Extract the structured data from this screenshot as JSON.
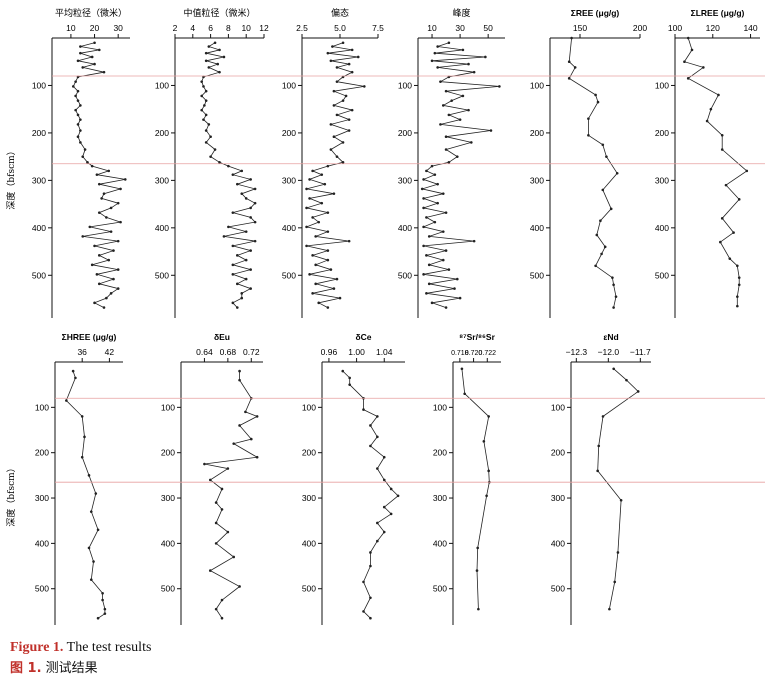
{
  "figure": {
    "caption_en_label": "Figure 1.",
    "caption_en_text": " The test results",
    "caption_cn_label": "图 1.",
    "caption_cn_text": " 测试结果",
    "y_axis_label": "深度（bfscm）",
    "boundary_depths": [
      80,
      265
    ],
    "boundary_color": "#e8a0a0"
  },
  "chart_data": [
    {
      "id": "mean",
      "type": "line",
      "title": "平均粒径（微米）",
      "xlim": [
        2,
        35
      ],
      "xticks": [
        10,
        20,
        30
      ],
      "ylim": [
        0,
        590
      ],
      "yticks": [
        100,
        200,
        300,
        400,
        500
      ],
      "x": [
        20,
        14,
        22,
        14,
        19,
        13,
        20,
        15,
        24,
        13,
        12,
        11,
        13,
        12,
        13,
        14,
        12,
        13,
        14,
        13,
        14,
        13,
        14,
        16,
        15,
        17,
        19,
        26,
        21,
        33,
        22,
        31,
        24,
        23,
        30,
        27,
        22,
        25,
        31,
        18,
        27,
        15,
        30,
        20,
        28,
        22,
        26,
        19,
        30,
        21,
        28,
        22,
        30,
        27,
        25,
        20,
        24
      ],
      "y": [
        10,
        18,
        25,
        32,
        40,
        48,
        55,
        62,
        72,
        82,
        92,
        102,
        112,
        122,
        132,
        142,
        152,
        162,
        172,
        182,
        195,
        208,
        220,
        235,
        250,
        262,
        270,
        280,
        288,
        298,
        308,
        318,
        328,
        338,
        348,
        358,
        368,
        378,
        388,
        398,
        408,
        418,
        428,
        438,
        448,
        458,
        468,
        478,
        488,
        498,
        508,
        518,
        528,
        538,
        548,
        558,
        568
      ]
    },
    {
      "id": "median",
      "type": "line",
      "title": "中值粒径（微米）",
      "xlim": [
        2,
        12
      ],
      "xticks": [
        2,
        4,
        6,
        8,
        10,
        12
      ],
      "ylim": [
        0,
        590
      ],
      "yticks": [
        100,
        200,
        300,
        400,
        500
      ],
      "x": [
        6.5,
        5.8,
        7,
        5.5,
        7.5,
        5.5,
        6.8,
        5.8,
        7,
        5.2,
        5,
        5.2,
        5.5,
        5,
        5.5,
        5.3,
        5,
        5.5,
        5.2,
        5.8,
        5.5,
        6,
        5.5,
        6.5,
        6,
        7,
        8,
        9.5,
        8.5,
        10.5,
        9,
        11,
        9.5,
        10,
        11,
        10.5,
        8.5,
        10.5,
        11,
        8,
        10,
        7.5,
        11,
        8.5,
        10.5,
        9,
        10,
        8.5,
        10.5,
        8.5,
        10,
        9,
        10.5,
        9.5,
        9.5,
        8.5,
        9
      ],
      "y": [
        10,
        18,
        25,
        32,
        40,
        48,
        55,
        62,
        72,
        82,
        92,
        102,
        112,
        122,
        132,
        142,
        152,
        162,
        172,
        182,
        195,
        208,
        220,
        235,
        250,
        262,
        270,
        280,
        288,
        298,
        308,
        318,
        328,
        338,
        348,
        358,
        368,
        378,
        388,
        398,
        408,
        418,
        428,
        438,
        448,
        458,
        468,
        478,
        488,
        498,
        508,
        518,
        528,
        538,
        548,
        558,
        568
      ]
    },
    {
      "id": "skew",
      "type": "line",
      "title": "偏态",
      "xlim": [
        2.5,
        7.5
      ],
      "xticks": [
        2.5,
        5.0,
        7.5
      ],
      "ylim": [
        0,
        590
      ],
      "yticks": [
        100,
        200,
        300,
        400,
        500
      ],
      "x": [
        5.2,
        4.5,
        5.8,
        4.2,
        6.2,
        4.4,
        5.6,
        4.8,
        5.8,
        5.2,
        4.8,
        6.6,
        4.6,
        5.4,
        5.2,
        4.6,
        5.8,
        4.8,
        5.6,
        4.4,
        5.6,
        4.6,
        5.2,
        4.4,
        4.8,
        5.2,
        4.2,
        3.2,
        3.8,
        3,
        4,
        2.8,
        4.6,
        3,
        3.8,
        2.8,
        4.2,
        3.2,
        3.6,
        2.8,
        4.2,
        3.4,
        5.6,
        2.8,
        4.2,
        3.2,
        4.2,
        3.4,
        4.4,
        3,
        4.8,
        3.4,
        4.6,
        3.2,
        5,
        3.6,
        4.2
      ],
      "y": [
        10,
        18,
        25,
        32,
        40,
        48,
        55,
        62,
        72,
        82,
        92,
        102,
        112,
        122,
        132,
        142,
        152,
        162,
        172,
        182,
        195,
        208,
        220,
        235,
        250,
        262,
        270,
        280,
        288,
        298,
        308,
        318,
        328,
        338,
        348,
        358,
        368,
        378,
        388,
        398,
        408,
        418,
        428,
        438,
        448,
        458,
        468,
        478,
        488,
        498,
        508,
        518,
        528,
        538,
        548,
        558,
        568
      ]
    },
    {
      "id": "kurt",
      "type": "line",
      "title": "峰度",
      "xlim": [
        0,
        62
      ],
      "xticks": [
        10,
        30,
        50
      ],
      "ylim": [
        0,
        590
      ],
      "yticks": [
        100,
        200,
        300,
        400,
        500
      ],
      "x": [
        22,
        14,
        32,
        12,
        48,
        10,
        36,
        14,
        40,
        22,
        16,
        58,
        20,
        32,
        24,
        18,
        36,
        22,
        30,
        16,
        52,
        20,
        38,
        20,
        28,
        22,
        10,
        6,
        12,
        4,
        14,
        3,
        18,
        4,
        14,
        4,
        20,
        6,
        12,
        4,
        18,
        8,
        40,
        4,
        20,
        6,
        18,
        8,
        22,
        4,
        28,
        8,
        26,
        6,
        30,
        10,
        20
      ],
      "y": [
        10,
        18,
        25,
        32,
        40,
        48,
        55,
        62,
        72,
        82,
        92,
        102,
        112,
        122,
        132,
        142,
        152,
        162,
        172,
        182,
        195,
        208,
        220,
        235,
        250,
        262,
        270,
        280,
        288,
        298,
        308,
        318,
        328,
        338,
        348,
        358,
        368,
        378,
        388,
        398,
        408,
        418,
        428,
        438,
        448,
        458,
        468,
        478,
        488,
        498,
        508,
        518,
        528,
        538,
        548,
        558,
        568
      ]
    },
    {
      "id": "sree",
      "type": "line",
      "title": "ΣREE (μg/g)",
      "xlim": [
        125,
        200
      ],
      "xticks": [
        150,
        200
      ],
      "ylim": [
        0,
        590
      ],
      "yticks": [
        100,
        200,
        300,
        400,
        500
      ],
      "x": [
        143,
        141,
        146,
        141,
        163,
        165,
        157,
        157,
        169,
        172,
        181,
        169,
        176,
        167,
        164,
        171,
        168,
        163,
        177,
        178,
        180,
        178
      ],
      "y": [
        0,
        50,
        62,
        85,
        120,
        135,
        170,
        205,
        225,
        250,
        285,
        320,
        360,
        385,
        415,
        440,
        455,
        480,
        505,
        520,
        545,
        568
      ]
    },
    {
      "id": "slree",
      "type": "line",
      "title": "ΣLREE (μg/g)",
      "xlim": [
        100,
        145
      ],
      "xticks": [
        100,
        120,
        140
      ],
      "ylim": [
        0,
        590
      ],
      "yticks": [
        100,
        200,
        300,
        400,
        500
      ],
      "x": [
        107,
        109,
        105,
        115,
        107,
        123,
        119,
        117,
        125,
        125,
        138,
        127,
        134,
        125,
        131,
        124,
        129,
        133,
        134,
        134,
        133,
        133
      ],
      "y": [
        0,
        25,
        50,
        62,
        85,
        120,
        150,
        175,
        205,
        235,
        280,
        310,
        340,
        380,
        410,
        430,
        465,
        480,
        505,
        520,
        545,
        565
      ]
    },
    {
      "id": "shree",
      "type": "line",
      "title": "ΣHREE (μg/g)",
      "xlim": [
        30,
        45
      ],
      "xticks": [
        36,
        42
      ],
      "ylim": [
        0,
        580
      ],
      "yticks": [
        100,
        200,
        300,
        400,
        500
      ],
      "x": [
        34,
        34.5,
        32.5,
        36,
        36.5,
        36,
        37.5,
        39,
        38,
        39.5,
        37.5,
        38.5,
        38,
        40.5,
        40.5,
        41,
        41,
        39.5
      ],
      "y": [
        20,
        35,
        85,
        120,
        165,
        210,
        250,
        290,
        330,
        370,
        410,
        440,
        480,
        510,
        525,
        545,
        555,
        565
      ]
    },
    {
      "id": "deu",
      "type": "line",
      "title": "δEu",
      "xlim": [
        0.6,
        0.74
      ],
      "xticks": [
        0.64,
        0.68,
        0.72
      ],
      "ylim": [
        0,
        580
      ],
      "yticks": [
        100,
        200,
        300,
        400,
        500
      ],
      "x": [
        0.7,
        0.7,
        0.72,
        0.71,
        0.73,
        0.7,
        0.72,
        0.69,
        0.73,
        0.64,
        0.68,
        0.65,
        0.67,
        0.66,
        0.67,
        0.66,
        0.68,
        0.66,
        0.69,
        0.65,
        0.7,
        0.67,
        0.66,
        0.67
      ],
      "y": [
        20,
        40,
        80,
        110,
        120,
        140,
        170,
        180,
        210,
        225,
        235,
        260,
        280,
        310,
        325,
        355,
        375,
        400,
        430,
        460,
        495,
        525,
        545,
        565
      ]
    },
    {
      "id": "dce",
      "type": "line",
      "title": "δCe",
      "xlim": [
        0.95,
        1.07
      ],
      "xticks": [
        0.96,
        1.0,
        1.04
      ],
      "ylim": [
        0,
        580
      ],
      "yticks": [
        100,
        200,
        300,
        400,
        500
      ],
      "x": [
        0.98,
        0.99,
        0.99,
        1.01,
        1.01,
        1.03,
        1.02,
        1.03,
        1.02,
        1.04,
        1.03,
        1.04,
        1.05,
        1.06,
        1.04,
        1.05,
        1.03,
        1.04,
        1.03,
        1.02,
        1.02,
        1.01,
        1.02,
        1.01,
        1.02
      ],
      "y": [
        20,
        35,
        50,
        80,
        105,
        120,
        140,
        165,
        185,
        210,
        235,
        260,
        280,
        295,
        320,
        335,
        355,
        375,
        395,
        420,
        450,
        485,
        520,
        550,
        565
      ]
    },
    {
      "id": "sr",
      "type": "line",
      "title": "⁸⁷Sr/⁸⁶Sr",
      "xlim": [
        0.717,
        0.724
      ],
      "xticks": [
        0.718,
        0.72,
        0.722
      ],
      "ylim": [
        0,
        580
      ],
      "yticks": [
        100,
        200,
        300,
        400,
        500
      ],
      "x": [
        0.7183,
        0.7187,
        0.7222,
        0.7215,
        0.7222,
        0.7223,
        0.7219,
        0.7206,
        0.7205,
        0.7207
      ],
      "y": [
        15,
        70,
        120,
        175,
        240,
        265,
        295,
        410,
        460,
        545
      ]
    },
    {
      "id": "end",
      "type": "line",
      "title": "εNd",
      "xlim": [
        -12.35,
        -11.6
      ],
      "xticks": [
        -12.3,
        -12.0,
        -11.7
      ],
      "ylim": [
        0,
        580
      ],
      "yticks": [
        100,
        200,
        300,
        400,
        500
      ],
      "x": [
        -11.95,
        -11.83,
        -11.72,
        -12.05,
        -12.09,
        -12.1,
        -11.88,
        -11.91,
        -11.94,
        -11.99
      ],
      "y": [
        15,
        40,
        65,
        120,
        185,
        240,
        305,
        420,
        485,
        545
      ]
    }
  ]
}
